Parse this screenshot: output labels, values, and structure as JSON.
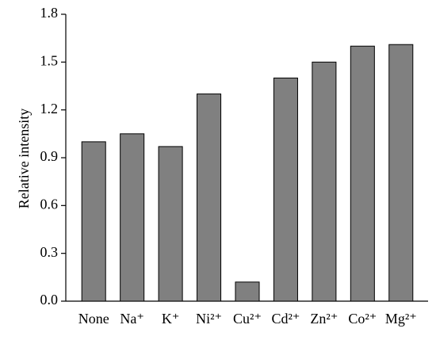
{
  "chart_data": {
    "type": "bar",
    "y_label": "Relative intensity",
    "categories": [
      "None",
      "Na⁺",
      "K⁺",
      "Ni²⁺",
      "Cu²⁺",
      "Cd²⁺",
      "Zn²⁺",
      "Co²⁺",
      "Mg²⁺"
    ],
    "values": [
      1.0,
      1.05,
      0.97,
      1.3,
      0.12,
      1.4,
      1.5,
      1.6,
      1.61
    ],
    "color": "#808080",
    "ylim": [
      0,
      1.8
    ],
    "yticks": [
      {
        "value": 0,
        "label": "0.0"
      },
      0.3,
      0.6,
      0.9,
      1.2,
      1.5,
      1.8
    ],
    "grid": false
  }
}
